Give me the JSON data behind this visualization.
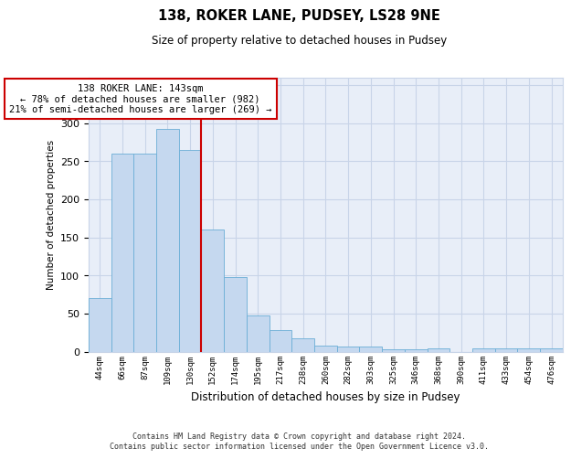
{
  "title1": "138, ROKER LANE, PUDSEY, LS28 9NE",
  "title2": "Size of property relative to detached houses in Pudsey",
  "xlabel": "Distribution of detached houses by size in Pudsey",
  "ylabel": "Number of detached properties",
  "categories": [
    "44sqm",
    "66sqm",
    "87sqm",
    "109sqm",
    "130sqm",
    "152sqm",
    "174sqm",
    "195sqm",
    "217sqm",
    "238sqm",
    "260sqm",
    "282sqm",
    "303sqm",
    "325sqm",
    "346sqm",
    "368sqm",
    "390sqm",
    "411sqm",
    "433sqm",
    "454sqm",
    "476sqm"
  ],
  "values": [
    70,
    260,
    260,
    292,
    265,
    160,
    98,
    48,
    28,
    18,
    8,
    7,
    7,
    3,
    3,
    4,
    0,
    4,
    4,
    4,
    4
  ],
  "bar_color": "#c5d8ef",
  "bar_edge_color": "#6baed6",
  "vline_x": 4.5,
  "vline_color": "#cc0000",
  "annotation_line1": "138 ROKER LANE: 143sqm",
  "annotation_line2": "← 78% of detached houses are smaller (982)",
  "annotation_line3": "21% of semi-detached houses are larger (269) →",
  "annotation_box_color": "#ffffff",
  "annotation_box_edge": "#cc0000",
  "grid_color": "#c8d4e8",
  "background_color": "#e8eef8",
  "ylim": [
    0,
    360
  ],
  "yticks": [
    0,
    50,
    100,
    150,
    200,
    250,
    300,
    350
  ],
  "footer1": "Contains HM Land Registry data © Crown copyright and database right 2024.",
  "footer2": "Contains public sector information licensed under the Open Government Licence v3.0."
}
